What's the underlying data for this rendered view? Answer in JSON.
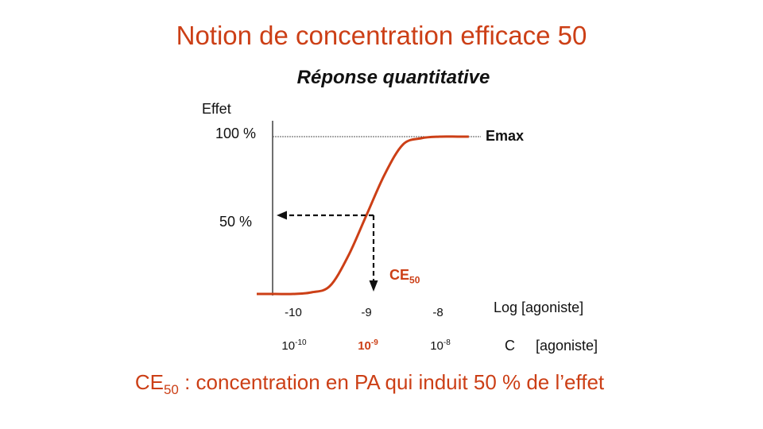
{
  "slide": {
    "title": "Notion de concentration efficace 50",
    "subtitle": "Réponse quantitative"
  },
  "axes": {
    "y_label": "Effet",
    "y_ticks": [
      "100 %",
      "50 %"
    ],
    "x_label_log": "Log [agoniste]",
    "x_label_conc_prefix": "C",
    "x_label_conc": "[agoniste]",
    "x_ticks_log": [
      "-10",
      "-9",
      "-8"
    ],
    "x_ticks_conc": [
      {
        "base": "10",
        "exp": "-10"
      },
      {
        "base": "10",
        "exp": "-9"
      },
      {
        "base": "10",
        "exp": "-8"
      }
    ]
  },
  "annotations": {
    "emax": "Emax",
    "ce50_main": "CE",
    "ce50_sub": "50"
  },
  "footer": {
    "main": "CE",
    "sub": "50",
    "rest": " : concentration en PA qui induit 50 % de l’effet"
  },
  "chart_data": {
    "type": "line",
    "x_log": [
      -10.5,
      -10.25,
      -10,
      -9.75,
      -9.5,
      -9.25,
      -9,
      -8.75,
      -8.5,
      -8.25,
      -8,
      -7.75,
      -7.6
    ],
    "y_percent": [
      0,
      0,
      0,
      1,
      5,
      24,
      50,
      76,
      95,
      99,
      100,
      100,
      100
    ],
    "ec50_log": -9,
    "ec50_percent": 50,
    "emax_percent": 100,
    "colors": {
      "curve": "#cc3f16",
      "text_accent": "#cc3f16"
    }
  }
}
